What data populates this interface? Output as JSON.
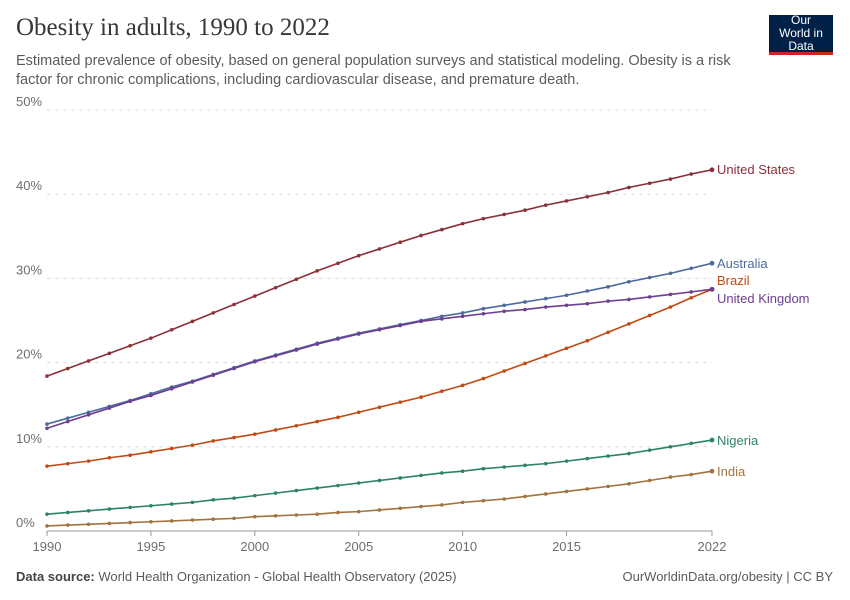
{
  "header": {
    "title": "Obesity in adults, 1990 to 2022",
    "subtitle": "Estimated prevalence of obesity, based on general population surveys and statistical modeling. Obesity is a risk factor for chronic complications, including cardiovascular disease, and premature death.",
    "logo_text": "Our World in Data"
  },
  "footer": {
    "source_label": "Data source:",
    "source": "World Health Organization - Global Health Observatory (2025)",
    "credit": "OurWorldinData.org/obesity | CC BY"
  },
  "chart_data": {
    "type": "line",
    "title": "Obesity in adults, 1990 to 2022",
    "xlim": [
      1990,
      2022
    ],
    "ylim": [
      0,
      50
    ],
    "x_ticks": [
      1990,
      1995,
      2000,
      2005,
      2010,
      2015,
      2022
    ],
    "x_tick_labels": [
      "1990",
      "1995",
      "2000",
      "2005",
      "2010",
      "2015",
      "2022"
    ],
    "y_ticks": [
      0,
      10,
      20,
      30,
      40,
      50
    ],
    "y_tick_labels": [
      "0%",
      "10%",
      "20%",
      "30%",
      "40%",
      "50%"
    ],
    "grid": "horizontal dashed",
    "legend": "inline labels at right end",
    "x": [
      1990,
      1991,
      1992,
      1993,
      1994,
      1995,
      1996,
      1997,
      1998,
      1999,
      2000,
      2001,
      2002,
      2003,
      2004,
      2005,
      2006,
      2007,
      2008,
      2009,
      2010,
      2011,
      2012,
      2013,
      2014,
      2015,
      2016,
      2017,
      2018,
      2019,
      2020,
      2021,
      2022
    ],
    "series": [
      {
        "name": "United States",
        "color": "#8a3039",
        "values": [
          18.4,
          19.3,
          20.2,
          21.1,
          22.0,
          22.9,
          23.9,
          24.9,
          25.9,
          26.9,
          27.9,
          28.9,
          29.9,
          30.9,
          31.8,
          32.7,
          33.5,
          34.3,
          35.1,
          35.8,
          36.5,
          37.1,
          37.6,
          38.1,
          38.7,
          39.2,
          39.7,
          40.2,
          40.8,
          41.3,
          41.8,
          42.4,
          42.9
        ]
      },
      {
        "name": "Australia",
        "color": "#4c6a9c",
        "values": [
          12.7,
          13.4,
          14.1,
          14.8,
          15.5,
          16.3,
          17.1,
          17.8,
          18.6,
          19.4,
          20.2,
          20.9,
          21.6,
          22.3,
          22.9,
          23.5,
          24.0,
          24.5,
          25.0,
          25.5,
          25.9,
          26.4,
          26.8,
          27.2,
          27.6,
          28.0,
          28.5,
          29.0,
          29.6,
          30.1,
          30.6,
          31.2,
          31.8
        ]
      },
      {
        "name": "Brazil",
        "color": "#c14a12",
        "values": [
          7.7,
          8.0,
          8.3,
          8.7,
          9.0,
          9.4,
          9.8,
          10.2,
          10.7,
          11.1,
          11.5,
          12.0,
          12.5,
          13.0,
          13.5,
          14.1,
          14.7,
          15.3,
          15.9,
          16.6,
          17.3,
          18.1,
          19.0,
          19.9,
          20.8,
          21.7,
          22.6,
          23.6,
          24.6,
          25.6,
          26.6,
          27.7,
          28.7
        ]
      },
      {
        "name": "United Kingdom",
        "color": "#6d3e91",
        "values": [
          12.2,
          13.0,
          13.8,
          14.6,
          15.4,
          16.1,
          16.9,
          17.7,
          18.5,
          19.3,
          20.1,
          20.8,
          21.5,
          22.2,
          22.8,
          23.4,
          23.9,
          24.4,
          24.9,
          25.2,
          25.5,
          25.8,
          26.1,
          26.3,
          26.6,
          26.8,
          27.0,
          27.3,
          27.5,
          27.8,
          28.1,
          28.4,
          28.7
        ]
      },
      {
        "name": "Nigeria",
        "color": "#2c8465",
        "values": [
          2.0,
          2.2,
          2.4,
          2.6,
          2.8,
          3.0,
          3.2,
          3.4,
          3.7,
          3.9,
          4.2,
          4.5,
          4.8,
          5.1,
          5.4,
          5.7,
          6.0,
          6.3,
          6.6,
          6.9,
          7.1,
          7.4,
          7.6,
          7.8,
          8.0,
          8.3,
          8.6,
          8.9,
          9.2,
          9.6,
          10.0,
          10.4,
          10.8
        ]
      },
      {
        "name": "India",
        "color": "#a2733d",
        "values": [
          0.6,
          0.7,
          0.8,
          0.9,
          1.0,
          1.1,
          1.2,
          1.3,
          1.4,
          1.5,
          1.7,
          1.8,
          1.9,
          2.0,
          2.2,
          2.3,
          2.5,
          2.7,
          2.9,
          3.1,
          3.4,
          3.6,
          3.8,
          4.1,
          4.4,
          4.7,
          5.0,
          5.3,
          5.6,
          6.0,
          6.4,
          6.7,
          7.1
        ]
      }
    ]
  }
}
